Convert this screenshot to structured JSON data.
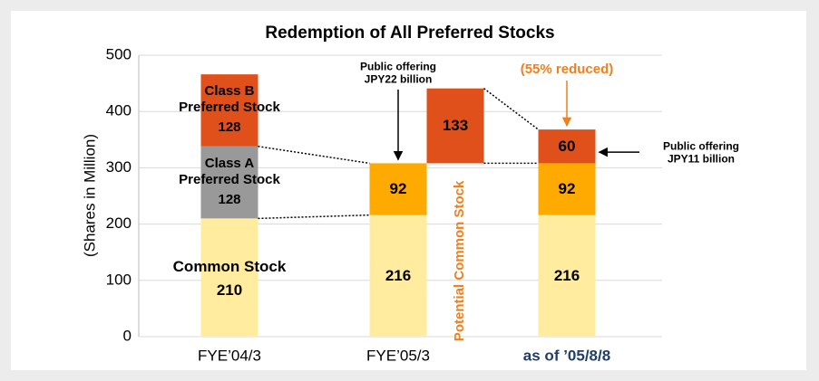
{
  "chart_data": {
    "type": "stacked_bar",
    "title": "Redemption of All Preferred Stocks",
    "y_label": "(Shares in Million)",
    "categories": [
      "FYE’04/3",
      "FYE’05/3",
      "as of ’05/8/8"
    ],
    "category_colors": [
      "#000000",
      "#000000",
      "#1f3f66"
    ],
    "series": [
      {
        "name": "Common Stock",
        "color": "#ffec9e",
        "values": [
          210,
          216,
          216
        ]
      },
      {
        "name": "Class A Preferred Stock",
        "color": "#999999",
        "values": [
          128,
          null,
          null
        ]
      },
      {
        "name": "Class B Preferred Stock",
        "color": "#e0501a",
        "values": [
          128,
          null,
          null
        ]
      },
      {
        "color": "#ffaa00",
        "values": [
          null,
          92,
          92
        ]
      },
      {
        "color": "#e0501a",
        "values": [
          null,
          null,
          60
        ]
      }
    ],
    "bridge": {
      "name": "Potential Common Stock",
      "value": 133,
      "color": "#e0501a",
      "label_color": "#f07f1e"
    },
    "annotations": [
      "Public offering JPY22 billion",
      "(55% reduced)",
      "Public offering JPY11 billion"
    ],
    "annotation_colors": [
      "#000000",
      "#f07f1e",
      "#000000"
    ],
    "ylim": [
      0,
      500
    ],
    "yticks": [
      0,
      100,
      200,
      300,
      400,
      500
    ],
    "grid": true
  }
}
